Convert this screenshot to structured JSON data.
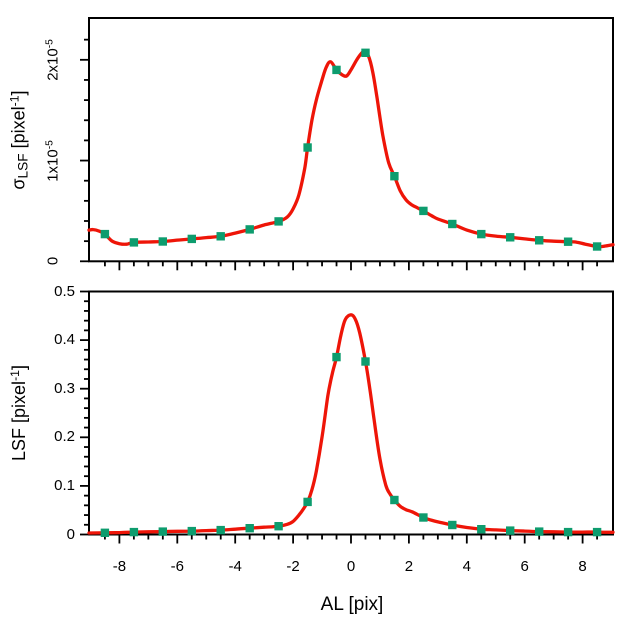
{
  "figure": {
    "background": "#ffffff",
    "frame_color": "#000000",
    "curve_color": "#ee1508",
    "marker_color": "#0d9c6e",
    "marker_shape": "filled-square"
  },
  "chart_data": [
    {
      "id": "sigma-lsf-panel",
      "type": "line",
      "title": "",
      "xlabel": "",
      "ylabel": "sigma_LSF [pixel^-1]",
      "ylabel_parts": [
        {
          "t": "σ"
        },
        {
          "t": "LSF",
          "v": "sub"
        },
        {
          "t": " [pixel"
        },
        {
          "t": "-1",
          "v": "sup"
        },
        {
          "t": "]"
        }
      ],
      "xlim": [
        -9.05,
        9.05
      ],
      "ylim": [
        0,
        2.415e-05
      ],
      "grid": false,
      "legend": "none",
      "yticks": {
        "values": [
          0,
          1e-05,
          2e-05
        ],
        "labels": [
          {
            "text": "0",
            "sup": ""
          },
          {
            "text": "1x10",
            "sup": "-5"
          },
          {
            "text": "2x10",
            "sup": "-5"
          }
        ],
        "minor_step": 2e-06,
        "label_rotated": true
      },
      "xticks": {
        "major_step": 2,
        "minor_step": 0.5,
        "labels": [],
        "label_values": []
      },
      "series": [
        {
          "name": "sigma-lsf-curve",
          "style": "line",
          "x": [
            -9.05,
            -8.9,
            -8.7,
            -8.5,
            -8.25,
            -8.0,
            -7.75,
            -7.5,
            -7.0,
            -6.5,
            -6.0,
            -5.5,
            -5.0,
            -4.5,
            -4.0,
            -3.5,
            -3.0,
            -2.5,
            -2.2,
            -2.0,
            -1.8,
            -1.6,
            -1.5,
            -1.35,
            -1.2,
            -1.0,
            -0.85,
            -0.7,
            -0.5,
            -0.3,
            -0.15,
            0.0,
            0.2,
            0.35,
            0.45,
            0.6,
            0.75,
            0.9,
            1.1,
            1.3,
            1.5,
            1.7,
            1.9,
            2.1,
            2.3,
            2.5,
            2.8,
            3.0,
            3.5,
            4.0,
            4.5,
            5.0,
            5.5,
            6.0,
            6.5,
            7.0,
            7.5,
            7.8,
            8.1,
            8.5,
            8.75,
            9.05
          ],
          "y": [
            3.1e-06,
            3.15e-06,
            3e-06,
            2.7e-06,
            2e-06,
            1.75e-06,
            1.7e-06,
            1.88e-06,
            1.92e-06,
            1.97e-06,
            2.1e-06,
            2.22e-06,
            2.35e-06,
            2.48e-06,
            2.8e-06,
            3.17e-06,
            3.6e-06,
            3.96e-06,
            4.4e-06,
            5.2e-06,
            6.6e-06,
            9.2e-06,
            1.13e-05,
            1.4e-05,
            1.6e-05,
            1.8e-05,
            1.93e-05,
            1.98e-05,
            1.9e-05,
            1.85e-05,
            1.84e-05,
            1.9e-05,
            2e-05,
            2.06e-05,
            2.08e-05,
            2.04e-05,
            1.88e-05,
            1.62e-05,
            1.25e-05,
            9.8e-06,
            8.45e-06,
            7e-06,
            6.1e-06,
            5.6e-06,
            5.3e-06,
            5e-06,
            4.5e-06,
            4.2e-06,
            3.7e-06,
            3.1e-06,
            2.7e-06,
            2.5e-06,
            2.38e-06,
            2.22e-06,
            2.08e-06,
            2e-06,
            1.95e-06,
            1.9e-06,
            1.7e-06,
            1.47e-06,
            1.5e-06,
            1.65e-06
          ]
        },
        {
          "name": "sigma-lsf-samples",
          "style": "scatter",
          "x": [
            -8.5,
            -7.5,
            -6.5,
            -5.5,
            -4.5,
            -3.5,
            -2.5,
            -1.5,
            -0.5,
            0.5,
            1.5,
            2.5,
            3.5,
            4.5,
            5.5,
            6.5,
            7.5,
            8.5
          ],
          "y": [
            2.7e-06,
            1.88e-06,
            1.97e-06,
            2.22e-06,
            2.48e-06,
            3.17e-06,
            3.96e-06,
            1.13e-05,
            1.9e-05,
            2.07e-05,
            8.45e-06,
            5e-06,
            3.7e-06,
            2.7e-06,
            2.38e-06,
            2.08e-06,
            1.95e-06,
            1.47e-06
          ]
        }
      ]
    },
    {
      "id": "lsf-panel",
      "type": "line",
      "title": "",
      "xlabel": "AL [pix]",
      "ylabel": "LSF [pixel^-1]",
      "ylabel_parts": [
        {
          "t": "LSF [pixel"
        },
        {
          "t": "-1",
          "v": "sup"
        },
        {
          "t": "]"
        }
      ],
      "xlim": [
        -9.05,
        9.05
      ],
      "ylim": [
        0,
        0.5
      ],
      "grid": false,
      "legend": "none",
      "yticks": {
        "values": [
          0,
          0.1,
          0.2,
          0.3,
          0.4,
          0.5
        ],
        "labels": [
          {
            "text": "0",
            "sup": ""
          },
          {
            "text": "0.1",
            "sup": ""
          },
          {
            "text": "0.2",
            "sup": ""
          },
          {
            "text": "0.3",
            "sup": ""
          },
          {
            "text": "0.4",
            "sup": ""
          },
          {
            "text": "0.5",
            "sup": ""
          }
        ],
        "minor_step": 0.02,
        "label_rotated": false
      },
      "xticks": {
        "major_step": 2,
        "minor_step": 0.5,
        "labels": [
          "-8",
          "-6",
          "-4",
          "-2",
          "0",
          "2",
          "4",
          "6",
          "8"
        ],
        "label_values": [
          -8,
          -6,
          -4,
          -2,
          0,
          2,
          4,
          6,
          8
        ]
      },
      "series": [
        {
          "name": "lsf-curve",
          "style": "line",
          "x": [
            -9.05,
            -8.5,
            -8.0,
            -7.5,
            -7.0,
            -6.5,
            -6.0,
            -5.5,
            -5.0,
            -4.5,
            -4.0,
            -3.5,
            -3.0,
            -2.5,
            -2.2,
            -2.0,
            -1.8,
            -1.65,
            -1.5,
            -1.35,
            -1.2,
            -1.0,
            -0.8,
            -0.65,
            -0.5,
            -0.35,
            -0.2,
            0.0,
            0.15,
            0.3,
            0.5,
            0.65,
            0.8,
            1.0,
            1.2,
            1.35,
            1.5,
            1.7,
            1.9,
            2.1,
            2.3,
            2.5,
            2.8,
            3.0,
            3.5,
            4.0,
            4.5,
            5.0,
            5.5,
            6.0,
            6.5,
            7.0,
            7.5,
            8.0,
            8.5,
            9.05
          ],
          "y": [
            0.003,
            0.0035,
            0.004,
            0.005,
            0.0055,
            0.006,
            0.0065,
            0.007,
            0.008,
            0.009,
            0.011,
            0.013,
            0.015,
            0.017,
            0.021,
            0.027,
            0.04,
            0.052,
            0.067,
            0.092,
            0.13,
            0.2,
            0.285,
            0.33,
            0.365,
            0.41,
            0.442,
            0.452,
            0.443,
            0.415,
            0.356,
            0.3,
            0.235,
            0.155,
            0.102,
            0.083,
            0.071,
            0.058,
            0.051,
            0.047,
            0.041,
            0.035,
            0.029,
            0.026,
            0.0195,
            0.0145,
            0.011,
            0.0095,
            0.008,
            0.007,
            0.006,
            0.0055,
            0.005,
            0.005,
            0.005,
            0.0045
          ]
        },
        {
          "name": "lsf-samples",
          "style": "scatter",
          "x": [
            -8.5,
            -7.5,
            -6.5,
            -5.5,
            -4.5,
            -3.5,
            -2.5,
            -1.5,
            -0.5,
            0.5,
            1.5,
            2.5,
            3.5,
            4.5,
            5.5,
            6.5,
            7.5,
            8.5
          ],
          "y": [
            0.0035,
            0.005,
            0.006,
            0.007,
            0.009,
            0.013,
            0.017,
            0.067,
            0.365,
            0.356,
            0.071,
            0.035,
            0.0195,
            0.011,
            0.008,
            0.006,
            0.005,
            0.005
          ]
        }
      ]
    }
  ]
}
